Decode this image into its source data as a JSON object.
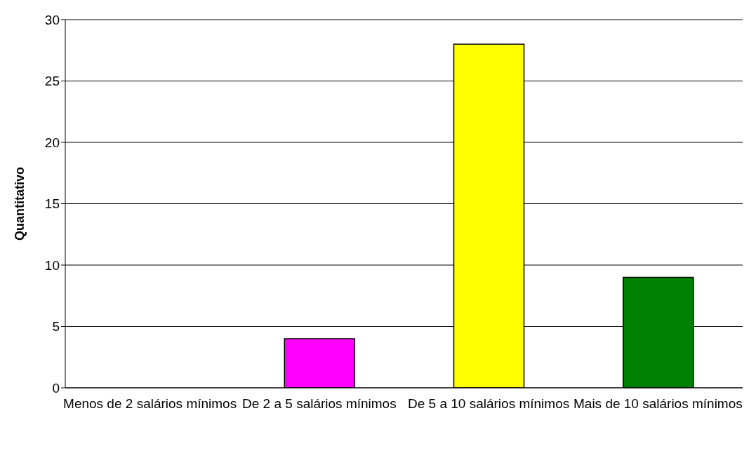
{
  "chart_data": {
    "type": "bar",
    "ylabel": "Quantitativo",
    "categories": [
      "Menos de 2 salários mínimos",
      "De 2 a 5 salários mínimos",
      "De 5 a 10 salários mínimos",
      "Mais de 10 salários mínimos"
    ],
    "values": [
      0,
      4,
      28,
      9
    ],
    "colors": [
      null,
      "#ff00ff",
      "#ffff00",
      "#008000"
    ],
    "ylim": [
      0,
      30
    ],
    "yticks": [
      0,
      5,
      10,
      15,
      20,
      25,
      30
    ],
    "grid": "y",
    "legend": false
  }
}
